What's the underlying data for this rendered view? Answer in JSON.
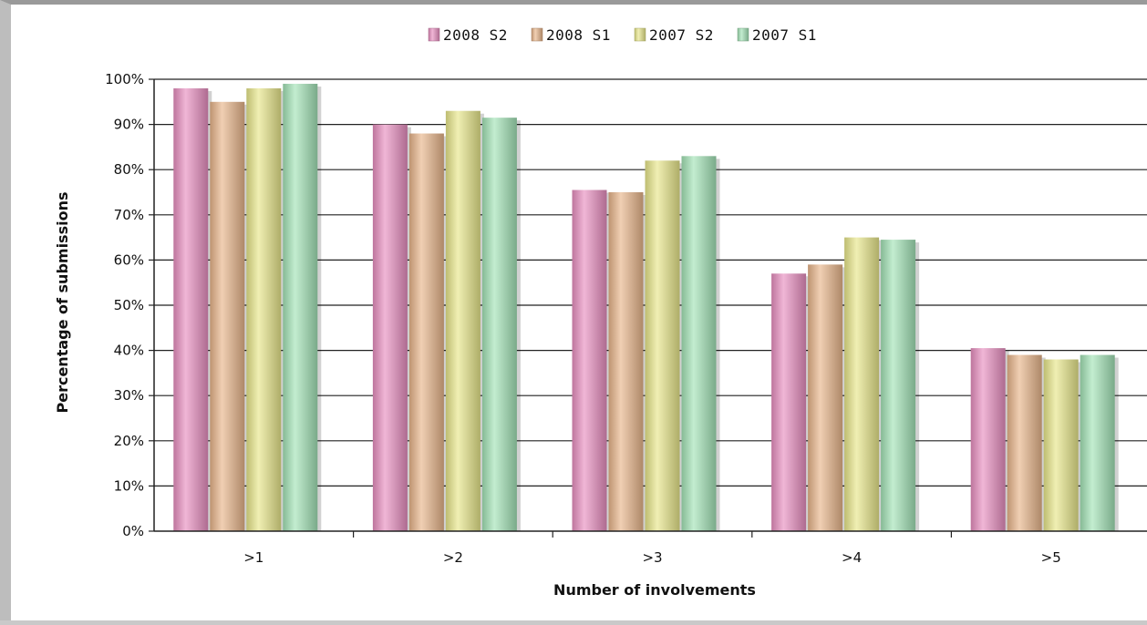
{
  "chart_data": {
    "type": "bar",
    "categories": [
      ">1",
      ">2",
      ">3",
      ">4",
      ">5"
    ],
    "series": [
      {
        "name": "2008 S2",
        "color": "#e88fc0",
        "values": [
          98,
          90,
          75.5,
          57,
          40.5
        ]
      },
      {
        "name": "2008 S1",
        "color": "#e8b58a",
        "values": [
          95,
          88,
          75,
          59,
          39
        ]
      },
      {
        "name": "2007 S2",
        "color": "#e8e68a",
        "values": [
          98,
          93,
          82,
          65,
          38
        ]
      },
      {
        "name": "2007 S1",
        "color": "#a3e3b6",
        "values": [
          99,
          91.5,
          83,
          64.5,
          39
        ]
      }
    ],
    "ylim": [
      0,
      100
    ],
    "yticks": [
      "0%",
      "10%",
      "20%",
      "30%",
      "40%",
      "50%",
      "60%",
      "70%",
      "80%",
      "90%",
      "100%"
    ],
    "xlabel": "Number of involvements",
    "ylabel": "Percentage of submissions",
    "legend_position": "top-center",
    "grid": true
  }
}
